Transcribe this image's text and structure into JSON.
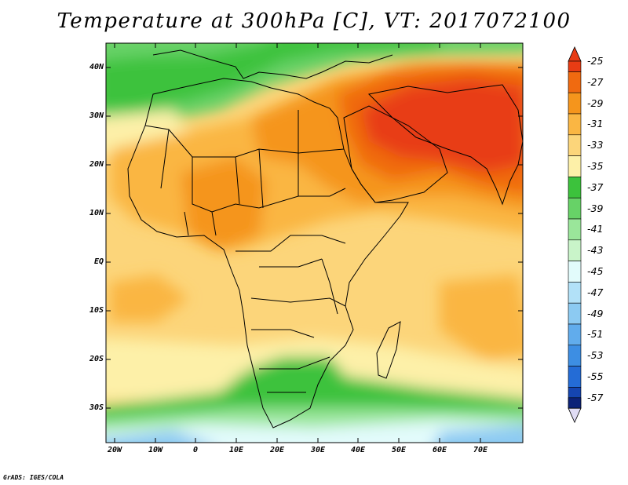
{
  "title": "Temperature at 300hPa [C], VT: 2017072100",
  "lat_labels": [
    "40N",
    "30N",
    "20N",
    "10N",
    "EQ",
    "10S",
    "20S",
    "30S"
  ],
  "lon_labels": [
    "20W",
    "10W",
    "0",
    "10E",
    "20E",
    "30E",
    "40E",
    "50E",
    "60E",
    "70E"
  ],
  "colorbar": {
    "labels": [
      "-25",
      "-27",
      "-29",
      "-31",
      "-33",
      "-35",
      "-37",
      "-39",
      "-41",
      "-43",
      "-45",
      "-47",
      "-49",
      "-51",
      "-53",
      "-55",
      "-57"
    ],
    "colors": [
      "#e83c14",
      "#f06a10",
      "#f5951c",
      "#fab643",
      "#fcd57a",
      "#fdf0a8",
      "#3cc23c",
      "#67d267",
      "#9ae69a",
      "#c9f4c9",
      "#e2fbfb",
      "#b2e1f8",
      "#8ccaf2",
      "#61acec",
      "#3d8ee3",
      "#246cd6",
      "#1545b0",
      "#0c2278"
    ]
  },
  "credit": "GrADS: IGES/COLA"
}
